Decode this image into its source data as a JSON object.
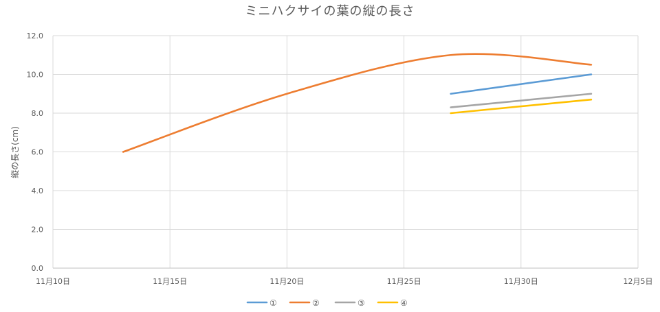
{
  "chart_data": {
    "type": "line",
    "title": "ミニハクサイの葉の縦の長さ",
    "xlabel": "",
    "ylabel": "縦の長さ(cm)",
    "ylim": [
      0,
      12
    ],
    "yticks": [
      "0.0",
      "2.0",
      "4.0",
      "6.0",
      "8.0",
      "10.0",
      "12.0"
    ],
    "xlim_day_index": [
      0,
      25
    ],
    "xticks": [
      "11月10日",
      "11月15日",
      "11月20日",
      "11月25日",
      "11月30日",
      "12月5日"
    ],
    "grid": true,
    "legend_position": "bottom",
    "smooth": true,
    "series": [
      {
        "name": "①",
        "color": "#5b9bd5",
        "x": [
          "11月27日",
          "12月3日"
        ],
        "values": [
          9.0,
          10.0
        ]
      },
      {
        "name": "②",
        "color": "#ed7d31",
        "x": [
          "11月13日",
          "11月20日",
          "11月27日",
          "12月3日"
        ],
        "values": [
          6.0,
          9.0,
          11.0,
          10.5
        ]
      },
      {
        "name": "③",
        "color": "#a5a5a5",
        "x": [
          "11月27日",
          "12月3日"
        ],
        "values": [
          8.3,
          9.0
        ]
      },
      {
        "name": "④",
        "color": "#ffc000",
        "x": [
          "11月27日",
          "12月3日"
        ],
        "values": [
          8.0,
          8.7
        ]
      }
    ]
  }
}
